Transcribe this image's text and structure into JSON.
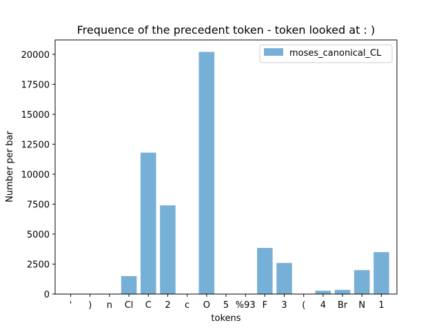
{
  "chart_data": {
    "type": "bar",
    "title": "Frequence of the precedent token - token looked at : )",
    "xlabel": "tokens",
    "ylabel": "Number per bar",
    "categories": [
      "'",
      ")",
      "n",
      "Cl",
      "C",
      "2",
      "c",
      "O",
      "5",
      "%93",
      "F",
      "3",
      "(",
      "4",
      "Br",
      "N",
      "1"
    ],
    "series": [
      {
        "name": "moses_canonical_CL",
        "values": [
          0,
          0,
          0,
          1500,
          11800,
          7400,
          0,
          20200,
          0,
          0,
          3850,
          2600,
          0,
          280,
          350,
          2000,
          3500
        ],
        "color": "#77b0d7"
      }
    ],
    "ylim": [
      0,
      21200
    ],
    "yticks": [
      0,
      2500,
      5000,
      7500,
      10000,
      12500,
      15000,
      17500,
      20000
    ],
    "legend_position": "top-right",
    "grid": false
  }
}
